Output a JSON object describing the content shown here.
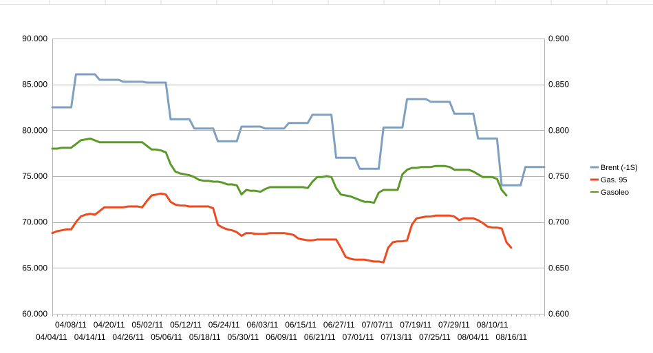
{
  "chart_data": {
    "type": "line",
    "left_axis": {
      "ylim": [
        60,
        90
      ],
      "ticks": [
        "60.000",
        "65.000",
        "70.000",
        "75.000",
        "80.000",
        "85.000",
        "90.000"
      ],
      "tick_values": [
        60,
        65,
        70,
        75,
        80,
        85,
        90
      ]
    },
    "right_axis": {
      "ylim": [
        0.6,
        0.9
      ],
      "ticks": [
        "0.600",
        "0.650",
        "0.700",
        "0.750",
        "0.800",
        "0.850",
        "0.900"
      ],
      "tick_values": [
        0.6,
        0.65,
        0.7,
        0.75,
        0.8,
        0.85,
        0.9
      ]
    },
    "x_labels_row1": [
      "04/08/11",
      "04/20/11",
      "05/02/11",
      "05/12/11",
      "05/24/11",
      "06/03/11",
      "06/15/11",
      "06/27/11",
      "07/07/11",
      "07/19/11",
      "07/29/11",
      "08/10/11"
    ],
    "x_labels_row2": [
      "04/04/11",
      "04/14/11",
      "04/26/11",
      "05/06/11",
      "05/18/11",
      "05/30/11",
      "06/09/11",
      "06/21/11",
      "07/01/11",
      "07/13/11",
      "07/25/11",
      "08/04/11",
      "08/16/11"
    ],
    "grid": true,
    "legend_position": "right",
    "series": [
      {
        "name": "Brent (-1S)",
        "axis": "left",
        "color": "#7f9fbf",
        "values": [
          82.5,
          82.5,
          82.5,
          82.5,
          82.5,
          86.1,
          86.1,
          86.1,
          86.1,
          86.1,
          85.5,
          85.5,
          85.5,
          85.5,
          85.5,
          85.3,
          85.3,
          85.3,
          85.3,
          85.3,
          85.2,
          85.2,
          85.2,
          85.2,
          85.2,
          81.2,
          81.2,
          81.2,
          81.2,
          81.2,
          80.2,
          80.2,
          80.2,
          80.2,
          80.2,
          78.8,
          78.8,
          78.8,
          78.8,
          78.8,
          80.4,
          80.4,
          80.4,
          80.4,
          80.4,
          80.2,
          80.2,
          80.2,
          80.2,
          80.2,
          80.8,
          80.8,
          80.8,
          80.8,
          80.8,
          81.7,
          81.7,
          81.7,
          81.7,
          81.7,
          77.0,
          77.0,
          77.0,
          77.0,
          77.0,
          75.8,
          75.8,
          75.8,
          75.8,
          75.8,
          80.3,
          80.3,
          80.3,
          80.3,
          80.3,
          83.4,
          83.4,
          83.4,
          83.4,
          83.4,
          83.1,
          83.1,
          83.1,
          83.1,
          83.1,
          81.8,
          81.8,
          81.8,
          81.8,
          81.8,
          79.1,
          79.1,
          79.1,
          79.1,
          79.1,
          74.0,
          74.0,
          74.0,
          74.0,
          74.0,
          76.0,
          76.0,
          76.0,
          76.0,
          76.0
        ]
      },
      {
        "name": "Gas. 95",
        "axis": "right",
        "color": "#ee4a1f",
        "values": [
          0.688,
          0.69,
          0.691,
          0.692,
          0.692,
          0.7,
          0.706,
          0.708,
          0.709,
          0.708,
          0.712,
          0.716,
          0.716,
          0.716,
          0.716,
          0.716,
          0.717,
          0.717,
          0.717,
          0.716,
          0.723,
          0.729,
          0.73,
          0.731,
          0.73,
          0.722,
          0.719,
          0.718,
          0.718,
          0.717,
          0.717,
          0.717,
          0.717,
          0.717,
          0.715,
          0.697,
          0.694,
          0.692,
          0.691,
          0.689,
          0.685,
          0.688,
          0.688,
          0.687,
          0.687,
          0.687,
          0.688,
          0.688,
          0.688,
          0.688,
          0.687,
          0.686,
          0.682,
          0.681,
          0.68,
          0.68,
          0.681,
          0.681,
          0.681,
          0.681,
          0.681,
          0.672,
          0.662,
          0.66,
          0.659,
          0.659,
          0.659,
          0.658,
          0.657,
          0.657,
          0.656,
          0.672,
          0.678,
          0.679,
          0.679,
          0.68,
          0.697,
          0.704,
          0.705,
          0.706,
          0.706,
          0.707,
          0.707,
          0.707,
          0.707,
          0.706,
          0.702,
          0.704,
          0.704,
          0.704,
          0.702,
          0.699,
          0.695,
          0.694,
          0.694,
          0.693,
          0.678,
          0.672
        ]
      },
      {
        "name": "Gasoleo",
        "axis": "right",
        "color": "#5a9a28",
        "values": [
          0.78,
          0.78,
          0.781,
          0.781,
          0.781,
          0.785,
          0.789,
          0.79,
          0.791,
          0.789,
          0.787,
          0.787,
          0.787,
          0.787,
          0.787,
          0.787,
          0.787,
          0.787,
          0.787,
          0.787,
          0.783,
          0.779,
          0.779,
          0.778,
          0.776,
          0.763,
          0.755,
          0.753,
          0.752,
          0.751,
          0.749,
          0.746,
          0.745,
          0.745,
          0.744,
          0.744,
          0.743,
          0.741,
          0.741,
          0.74,
          0.73,
          0.735,
          0.734,
          0.734,
          0.733,
          0.736,
          0.738,
          0.738,
          0.738,
          0.738,
          0.738,
          0.738,
          0.738,
          0.738,
          0.737,
          0.744,
          0.749,
          0.749,
          0.75,
          0.749,
          0.737,
          0.73,
          0.729,
          0.728,
          0.726,
          0.724,
          0.722,
          0.722,
          0.721,
          0.732,
          0.735,
          0.735,
          0.735,
          0.735,
          0.752,
          0.757,
          0.759,
          0.759,
          0.76,
          0.76,
          0.76,
          0.761,
          0.761,
          0.761,
          0.76,
          0.757,
          0.757,
          0.757,
          0.757,
          0.755,
          0.752,
          0.749,
          0.749,
          0.749,
          0.747,
          0.735,
          0.729
        ]
      }
    ]
  }
}
